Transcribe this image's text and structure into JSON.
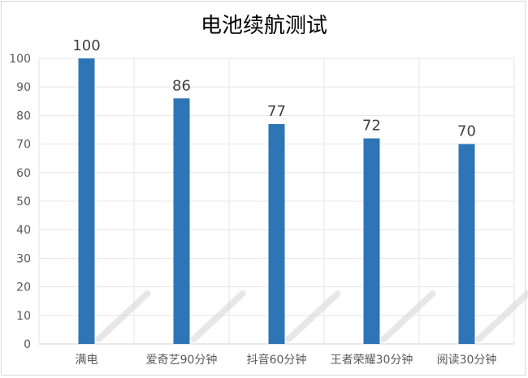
{
  "chart_data": {
    "type": "bar",
    "title": "电池续航测试",
    "categories": [
      "满电",
      "爱奇艺90分钟",
      "抖音60分钟",
      "王者荣耀30分钟",
      "阅读30分钟"
    ],
    "values": [
      100,
      86,
      77,
      72,
      70
    ],
    "ylim": [
      0,
      100
    ],
    "yticks": [
      0,
      10,
      20,
      30,
      40,
      50,
      60,
      70,
      80,
      90,
      100
    ],
    "grid": true,
    "data_labels": true,
    "bar_color": "#2e75b6"
  }
}
